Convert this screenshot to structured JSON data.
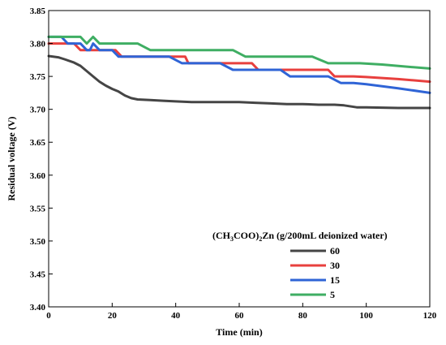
{
  "chart_data": {
    "type": "line",
    "title": "",
    "xlabel": "Time (min)",
    "ylabel": "Residual voltage (V)",
    "xlim": [
      0,
      120
    ],
    "ylim": [
      3.4,
      3.85
    ],
    "xticks": [
      "0",
      "20",
      "40",
      "60",
      "80",
      "100",
      "120"
    ],
    "yticks": [
      "3.40",
      "3.45",
      "3.50",
      "3.55",
      "3.60",
      "3.65",
      "3.70",
      "3.75",
      "3.80",
      "3.85"
    ],
    "grid": false,
    "legend": {
      "title_prefix": "(CH",
      "title_sub1": "3",
      "title_mid": "COO)",
      "title_sub2": "2",
      "title_suffix": "Zn (g/200mL deionized water)",
      "placement": "bottom-right"
    },
    "series": [
      {
        "name": "60",
        "color": "#454545",
        "points": [
          [
            0,
            3.781
          ],
          [
            3,
            3.779
          ],
          [
            5,
            3.776
          ],
          [
            8,
            3.771
          ],
          [
            10,
            3.766
          ],
          [
            12,
            3.758
          ],
          [
            14,
            3.75
          ],
          [
            16,
            3.742
          ],
          [
            18,
            3.736
          ],
          [
            20,
            3.731
          ],
          [
            22,
            3.727
          ],
          [
            24,
            3.721
          ],
          [
            26,
            3.717
          ],
          [
            28,
            3.715
          ],
          [
            32,
            3.714
          ],
          [
            36,
            3.713
          ],
          [
            40,
            3.712
          ],
          [
            45,
            3.711
          ],
          [
            50,
            3.711
          ],
          [
            55,
            3.711
          ],
          [
            60,
            3.711
          ],
          [
            65,
            3.71
          ],
          [
            70,
            3.709
          ],
          [
            75,
            3.708
          ],
          [
            80,
            3.708
          ],
          [
            85,
            3.707
          ],
          [
            90,
            3.707
          ],
          [
            93,
            3.706
          ],
          [
            97,
            3.703
          ],
          [
            100,
            3.703
          ],
          [
            110,
            3.702
          ],
          [
            120,
            3.702
          ]
        ]
      },
      {
        "name": "30",
        "color": "#e8403e",
        "points": [
          [
            0,
            3.8
          ],
          [
            8,
            3.8
          ],
          [
            10,
            3.79
          ],
          [
            12,
            3.79
          ],
          [
            14,
            3.79
          ],
          [
            21,
            3.79
          ],
          [
            23,
            3.78
          ],
          [
            43,
            3.78
          ],
          [
            44,
            3.77
          ],
          [
            64,
            3.77
          ],
          [
            66,
            3.76
          ],
          [
            88,
            3.76
          ],
          [
            90,
            3.75
          ],
          [
            96,
            3.75
          ],
          [
            100,
            3.749
          ],
          [
            110,
            3.746
          ],
          [
            120,
            3.742
          ]
        ]
      },
      {
        "name": "15",
        "color": "#2f64d6",
        "points": [
          [
            0,
            3.81
          ],
          [
            4,
            3.81
          ],
          [
            6,
            3.8
          ],
          [
            10,
            3.8
          ],
          [
            12,
            3.79
          ],
          [
            13,
            3.79
          ],
          [
            14,
            3.8
          ],
          [
            16,
            3.79
          ],
          [
            20,
            3.79
          ],
          [
            22,
            3.78
          ],
          [
            38,
            3.78
          ],
          [
            42,
            3.77
          ],
          [
            54,
            3.77
          ],
          [
            58,
            3.76
          ],
          [
            73,
            3.76
          ],
          [
            76,
            3.75
          ],
          [
            88,
            3.75
          ],
          [
            92,
            3.74
          ],
          [
            96,
            3.74
          ],
          [
            100,
            3.738
          ],
          [
            110,
            3.732
          ],
          [
            120,
            3.725
          ]
        ]
      },
      {
        "name": "5",
        "color": "#3fae63",
        "points": [
          [
            0,
            3.81
          ],
          [
            10,
            3.81
          ],
          [
            12,
            3.8
          ],
          [
            14,
            3.81
          ],
          [
            16,
            3.8
          ],
          [
            28,
            3.8
          ],
          [
            32,
            3.79
          ],
          [
            58,
            3.79
          ],
          [
            62,
            3.78
          ],
          [
            83,
            3.78
          ],
          [
            88,
            3.77
          ],
          [
            98,
            3.77
          ],
          [
            105,
            3.768
          ],
          [
            112,
            3.765
          ],
          [
            120,
            3.762
          ]
        ]
      }
    ]
  }
}
